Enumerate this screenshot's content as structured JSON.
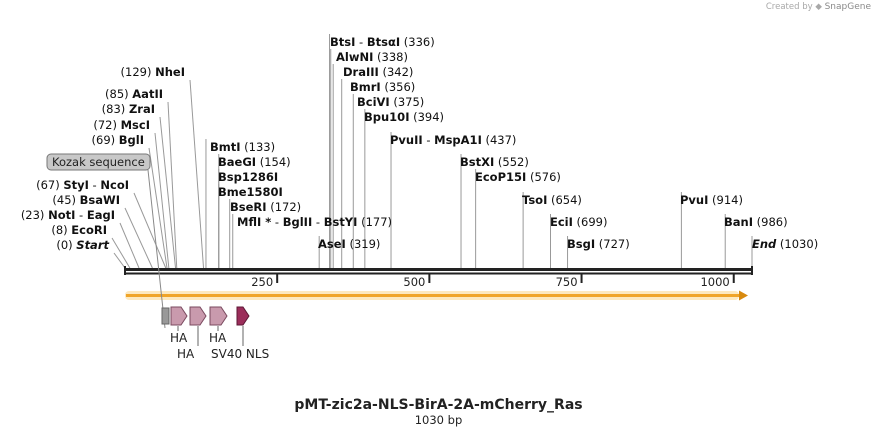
{
  "credit": {
    "prefix": "Created by",
    "brand": "SnapGene"
  },
  "map": {
    "name": "pMT-zic2a-NLS-BirA-2A-mCherry_Ras",
    "length_label": "1030 bp",
    "length": 1030,
    "ticks": [
      {
        "value": 250,
        "label": "250"
      },
      {
        "value": 500,
        "label": "500"
      },
      {
        "value": 750,
        "label": "750"
      },
      {
        "value": 1000,
        "label": "1000"
      }
    ],
    "orf_color": "#f5a623"
  },
  "enzymes": [
    {
      "name": "Start",
      "pos": 0,
      "pos_label": "(0)",
      "italic": true,
      "side": "left"
    },
    {
      "name": "EcoRI",
      "pos": 8,
      "pos_label": "(8)",
      "side": "left"
    },
    {
      "name": "NotI",
      "pos": 23,
      "pos_label": "(23)",
      "side": "left",
      "pair": "EagI"
    },
    {
      "name": "BsaWI",
      "pos": 45,
      "pos_label": "(45)",
      "side": "left"
    },
    {
      "name": "StyI",
      "pos": 67,
      "pos_label": "(67)",
      "side": "left",
      "pair": "NcoI"
    },
    {
      "name": "BglI",
      "pos": 69,
      "pos_label": "(69)",
      "side": "left"
    },
    {
      "name": "MscI",
      "pos": 72,
      "pos_label": "(72)",
      "side": "left"
    },
    {
      "name": "ZraI",
      "pos": 83,
      "pos_label": "(83)",
      "side": "left"
    },
    {
      "name": "AatII",
      "pos": 85,
      "pos_label": "(85)",
      "side": "left"
    },
    {
      "name": "NheI",
      "pos": 129,
      "pos_label": "(129)",
      "side": "left"
    },
    {
      "name": "BmtI",
      "pos": 133,
      "pos_label": "(133)",
      "side": "right"
    },
    {
      "name": "BaeGI",
      "pos": 154,
      "pos_label": "(154)",
      "side": "right"
    },
    {
      "name": "Bsp1286I",
      "pos": 154,
      "pos_label": "",
      "side": "right"
    },
    {
      "name": "Bme1580I",
      "pos": 154,
      "pos_label": "",
      "side": "right"
    },
    {
      "name": "BseRI",
      "pos": 172,
      "pos_label": "(172)",
      "side": "right"
    },
    {
      "name": "MflI *",
      "pos": 177,
      "pos_label": "(177)",
      "side": "right",
      "pair": "BglII",
      "pair2": "BstYI"
    },
    {
      "name": "AseI",
      "pos": 319,
      "pos_label": "(319)",
      "side": "right"
    },
    {
      "name": "BtsI",
      "pos": 336,
      "pos_label": "(336)",
      "side": "right",
      "pair": "BtsαI"
    },
    {
      "name": "AlwNI",
      "pos": 338,
      "pos_label": "(338)",
      "side": "right"
    },
    {
      "name": "DraIII",
      "pos": 342,
      "pos_label": "(342)",
      "side": "right"
    },
    {
      "name": "BmrI",
      "pos": 356,
      "pos_label": "(356)",
      "side": "right"
    },
    {
      "name": "BciVI",
      "pos": 375,
      "pos_label": "(375)",
      "side": "right"
    },
    {
      "name": "Bpu10I",
      "pos": 394,
      "pos_label": "(394)",
      "side": "right"
    },
    {
      "name": "PvuII",
      "pos": 437,
      "pos_label": "(437)",
      "side": "right",
      "pair": "MspA1I"
    },
    {
      "name": "BstXI",
      "pos": 552,
      "pos_label": "(552)",
      "side": "right"
    },
    {
      "name": "EcoP15I",
      "pos": 576,
      "pos_label": "(576)",
      "side": "right"
    },
    {
      "name": "TsoI",
      "pos": 654,
      "pos_label": "(654)",
      "side": "right"
    },
    {
      "name": "EciI",
      "pos": 699,
      "pos_label": "(699)",
      "side": "right"
    },
    {
      "name": "BsgI",
      "pos": 727,
      "pos_label": "(727)",
      "side": "right"
    },
    {
      "name": "PvuI",
      "pos": 914,
      "pos_label": "(914)",
      "side": "right"
    },
    {
      "name": "BanI",
      "pos": 986,
      "pos_label": "(986)",
      "side": "right"
    },
    {
      "name": "End",
      "pos": 1030,
      "pos_label": "(1030)",
      "italic": true,
      "side": "right"
    }
  ],
  "features": [
    {
      "name": "Kozak sequence",
      "type": "box-label",
      "color": "#bbbbbb"
    },
    {
      "name": "HA",
      "type": "tag",
      "color": "#c99aad"
    },
    {
      "name": "HA",
      "type": "tag",
      "color": "#c99aad"
    },
    {
      "name": "HA",
      "type": "tag",
      "color": "#c99aad"
    },
    {
      "name": "SV40 NLS",
      "type": "nls",
      "color": "#9b2d5a"
    }
  ]
}
